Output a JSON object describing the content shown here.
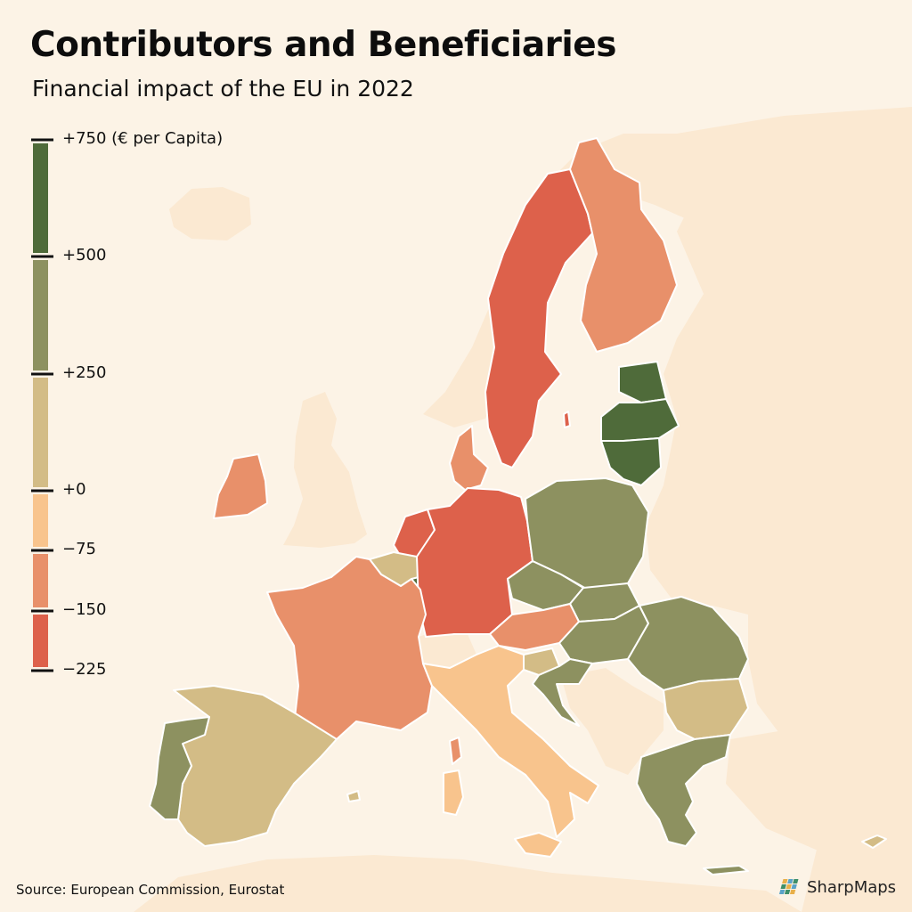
{
  "title": "Contributors and Beneficiaries",
  "subtitle": "Financial impact of the EU in 2022",
  "legend": {
    "bins": [
      {
        "from": 500,
        "to": 750,
        "color": "#4f6b3a"
      },
      {
        "from": 250,
        "to": 500,
        "color": "#8d9160"
      },
      {
        "from": 0,
        "to": 250,
        "color": "#d3bc86"
      },
      {
        "from": -75,
        "to": 0,
        "color": "#f8c48d"
      },
      {
        "from": -150,
        "to": -75,
        "color": "#e8906a"
      },
      {
        "from": -225,
        "to": -150,
        "color": "#dd614b"
      }
    ],
    "labels": [
      "+750 (€ per Capita)",
      "+500",
      "+250",
      "+0",
      "−75",
      "−150",
      "−225"
    ]
  },
  "colors": {
    "background_sea": "#fcf3e6",
    "non_eu_land": "#fbe9d2",
    "border": "#ffffff"
  },
  "countries": [
    {
      "name": "Lithuania",
      "bin": "+500 to +750",
      "color": "#4f6b3a"
    },
    {
      "name": "Latvia",
      "bin": "+500 to +750",
      "color": "#4f6b3a"
    },
    {
      "name": "Estonia",
      "bin": "+500 to +750",
      "color": "#4f6b3a"
    },
    {
      "name": "Luxembourg",
      "bin": "+500 to +750",
      "color": "#4f6b3a"
    },
    {
      "name": "Poland",
      "bin": "+250 to +500",
      "color": "#8d9160"
    },
    {
      "name": "Czechia",
      "bin": "+250 to +500",
      "color": "#8d9160"
    },
    {
      "name": "Slovakia",
      "bin": "+250 to +500",
      "color": "#8d9160"
    },
    {
      "name": "Hungary",
      "bin": "+250 to +500",
      "color": "#8d9160"
    },
    {
      "name": "Romania",
      "bin": "+250 to +500",
      "color": "#8d9160"
    },
    {
      "name": "Croatia",
      "bin": "+250 to +500",
      "color": "#8d9160"
    },
    {
      "name": "Greece",
      "bin": "+250 to +500",
      "color": "#8d9160"
    },
    {
      "name": "Portugal",
      "bin": "+250 to +500",
      "color": "#8d9160"
    },
    {
      "name": "Spain",
      "bin": "0 to +250",
      "color": "#d3bc86"
    },
    {
      "name": "Belgium",
      "bin": "0 to +250",
      "color": "#d3bc86"
    },
    {
      "name": "Bulgaria",
      "bin": "0 to +250",
      "color": "#d3bc86"
    },
    {
      "name": "Slovenia",
      "bin": "0 to +250",
      "color": "#d3bc86"
    },
    {
      "name": "Cyprus",
      "bin": "0 to +250",
      "color": "#d3bc86"
    },
    {
      "name": "Italy",
      "bin": "−75 to 0",
      "color": "#f8c48d"
    },
    {
      "name": "France",
      "bin": "−150 to −75",
      "color": "#e8906a"
    },
    {
      "name": "Finland",
      "bin": "−150 to −75",
      "color": "#e8906a"
    },
    {
      "name": "Austria",
      "bin": "−150 to −75",
      "color": "#e8906a"
    },
    {
      "name": "Ireland",
      "bin": "−150 to −75",
      "color": "#e8906a"
    },
    {
      "name": "Denmark",
      "bin": "−150 to −75",
      "color": "#e8906a"
    },
    {
      "name": "Germany",
      "bin": "−225 to −150",
      "color": "#dd614b"
    },
    {
      "name": "Sweden",
      "bin": "−225 to −150",
      "color": "#dd614b"
    },
    {
      "name": "Netherlands",
      "bin": "−225 to −150",
      "color": "#dd614b"
    }
  ],
  "source": "Source: European Commission, Eurostat",
  "brand": "SharpMaps"
}
